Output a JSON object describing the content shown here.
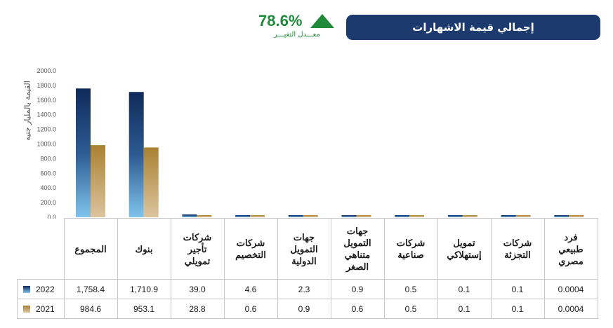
{
  "header": {
    "title": "إجمالي قيمة الاشهارات",
    "change_value": "78.6%",
    "change_label": "معـــدل التغيـــر"
  },
  "colors": {
    "title_bg": "#1c3a6e",
    "accent_green": "#1f8a3a",
    "series_2022_top": "#0f2a5a",
    "series_2022_bottom": "#7fc4ec",
    "series_2021_top": "#a98131",
    "series_2021_bottom": "#dcc49e"
  },
  "chart_data": {
    "type": "bar",
    "ylabel": "القيمة بالمليار جنيه",
    "ylim": [
      0,
      2000
    ],
    "yticks": [
      "0.0",
      "200.0",
      "400.0",
      "600.0",
      "800.0",
      "1000.0",
      "1200.0",
      "1400.0",
      "1600.0",
      "1800.0",
      "2000.0"
    ],
    "grid": false,
    "categories": [
      "المجموع",
      "بنوك",
      "شركات تأجير تمويلي",
      "شركات التخصيم",
      "جهات التمويل الدولية",
      "جهات التمويل متناهي الصغر",
      "شركات صناعية",
      "تمويل إستهلاكي",
      "شركات التجزئة",
      "فرد طبيعي مصري"
    ],
    "category_lines": [
      [
        "المجموع"
      ],
      [
        "بنوك"
      ],
      [
        "شركات",
        "تأجير",
        "تمويلي"
      ],
      [
        "شركات",
        "التخصيم"
      ],
      [
        "جهات",
        "التمويل",
        "الدولية"
      ],
      [
        "جهات",
        "التمويل",
        "متناهي",
        "الصغر"
      ],
      [
        "شركات",
        "صناعية"
      ],
      [
        "تمويل",
        "إستهلاكي"
      ],
      [
        "شركات",
        "التجزئة"
      ],
      [
        "فرد",
        "طبيعي",
        "مصري"
      ]
    ],
    "series": [
      {
        "name": "2022",
        "values": [
          1758.4,
          1710.9,
          39.0,
          4.6,
          2.3,
          0.9,
          0.5,
          0.1,
          0.1,
          0.0004
        ],
        "labels": [
          "1,758.4",
          "1,710.9",
          "39.0",
          "4.6",
          "2.3",
          "0.9",
          "0.5",
          "0.1",
          "0.1",
          "0.0004"
        ]
      },
      {
        "name": "2021",
        "values": [
          984.6,
          953.1,
          28.8,
          0.6,
          0.9,
          0.6,
          0.5,
          0.1,
          0.1,
          0.0004
        ],
        "labels": [
          "984.6",
          "953.1",
          "28.8",
          "0.6",
          "0.9",
          "0.6",
          "0.5",
          "0.1",
          "0.1",
          "0.0004"
        ]
      }
    ]
  }
}
